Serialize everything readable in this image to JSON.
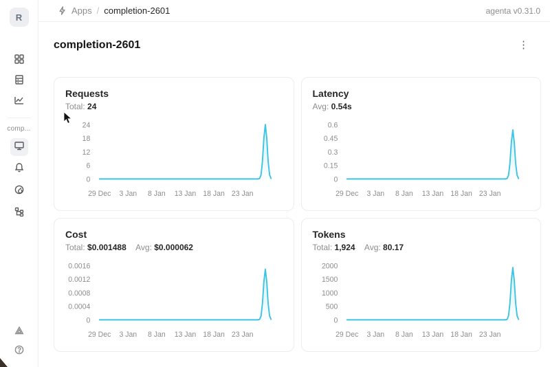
{
  "header": {
    "breadcrumb": {
      "section": "Apps",
      "separator": "/",
      "current": "completion-2601"
    },
    "version": "agenta v0.31.0"
  },
  "sidebar": {
    "avatar_letter": "R",
    "workspace_label": "comp...",
    "nav_top": [
      {
        "icon": "apps-grid-icon"
      },
      {
        "icon": "database-icon"
      },
      {
        "icon": "line-chart-icon"
      }
    ],
    "nav_app": [
      {
        "icon": "monitor-icon",
        "active": true
      },
      {
        "icon": "bell-icon"
      },
      {
        "icon": "gauge-icon"
      },
      {
        "icon": "workflow-tree-icon"
      }
    ],
    "nav_bottom": [
      {
        "icon": "triangle-icon"
      },
      {
        "icon": "help-circle-icon"
      }
    ]
  },
  "page": {
    "title": "completion-2601"
  },
  "colors": {
    "accent": "#3fc3e2",
    "axis_text": "#8c8c8c",
    "area_top_opacity": 0.25,
    "area_bottom_opacity": 0.02
  },
  "chart_data": [
    {
      "type": "line",
      "title": "Requests",
      "stats": [
        {
          "label": "Total:",
          "value": "24"
        }
      ],
      "x_ticks": [
        "29 Dec",
        "3 Jan",
        "8 Jan",
        "13 Jan",
        "18 Jan",
        "23 Jan"
      ],
      "y_ticks": [
        "0",
        "6",
        "12",
        "18",
        "24"
      ],
      "ylim": [
        0,
        24
      ],
      "y_max": 24,
      "peak_value": 24,
      "series": [
        {
          "name": "requests",
          "points": [
            {
              "date": "29 Dec",
              "value": 0
            },
            {
              "date": "26 Jan",
              "value": 0
            },
            {
              "date": "27 Jan",
              "value": 24
            },
            {
              "date": "28 Jan",
              "value": 0
            }
          ]
        }
      ]
    },
    {
      "type": "line",
      "title": "Latency",
      "stats": [
        {
          "label": "Avg:",
          "value": "0.54s"
        }
      ],
      "x_ticks": [
        "29 Dec",
        "3 Jan",
        "8 Jan",
        "13 Jan",
        "18 Jan",
        "23 Jan"
      ],
      "y_ticks": [
        "0",
        "0.15",
        "0.3",
        "0.45",
        "0.6"
      ],
      "ylim": [
        0,
        0.6
      ],
      "y_max": 0.6,
      "peak_value": 0.54,
      "series": [
        {
          "name": "latency",
          "points": [
            {
              "date": "29 Dec",
              "value": 0
            },
            {
              "date": "26 Jan",
              "value": 0
            },
            {
              "date": "27 Jan",
              "value": 0.54
            },
            {
              "date": "28 Jan",
              "value": 0
            }
          ]
        }
      ]
    },
    {
      "type": "line",
      "title": "Cost",
      "stats": [
        {
          "label": "Total:",
          "value": "$0.001488"
        },
        {
          "label": "Avg:",
          "value": "$0.000062"
        }
      ],
      "x_ticks": [
        "29 Dec",
        "3 Jan",
        "8 Jan",
        "13 Jan",
        "18 Jan",
        "23 Jan"
      ],
      "y_ticks": [
        "0",
        "0.0004",
        "0.0008",
        "0.0012",
        "0.0016"
      ],
      "ylim": [
        0,
        0.0016
      ],
      "y_max": 0.0016,
      "peak_value": 0.001488,
      "series": [
        {
          "name": "cost",
          "points": [
            {
              "date": "29 Dec",
              "value": 0
            },
            {
              "date": "26 Jan",
              "value": 0
            },
            {
              "date": "27 Jan",
              "value": 0.001488
            },
            {
              "date": "28 Jan",
              "value": 0
            }
          ]
        }
      ]
    },
    {
      "type": "line",
      "title": "Tokens",
      "stats": [
        {
          "label": "Total:",
          "value": "1,924"
        },
        {
          "label": "Avg:",
          "value": "80.17"
        }
      ],
      "x_ticks": [
        "29 Dec",
        "3 Jan",
        "8 Jan",
        "13 Jan",
        "18 Jan",
        "23 Jan"
      ],
      "y_ticks": [
        "0",
        "500",
        "1000",
        "1500",
        "2000"
      ],
      "ylim": [
        0,
        2000
      ],
      "y_max": 2000,
      "peak_value": 1924,
      "series": [
        {
          "name": "tokens",
          "points": [
            {
              "date": "29 Dec",
              "value": 0
            },
            {
              "date": "26 Jan",
              "value": 0
            },
            {
              "date": "27 Jan",
              "value": 1924
            },
            {
              "date": "28 Jan",
              "value": 0
            }
          ]
        }
      ]
    }
  ]
}
